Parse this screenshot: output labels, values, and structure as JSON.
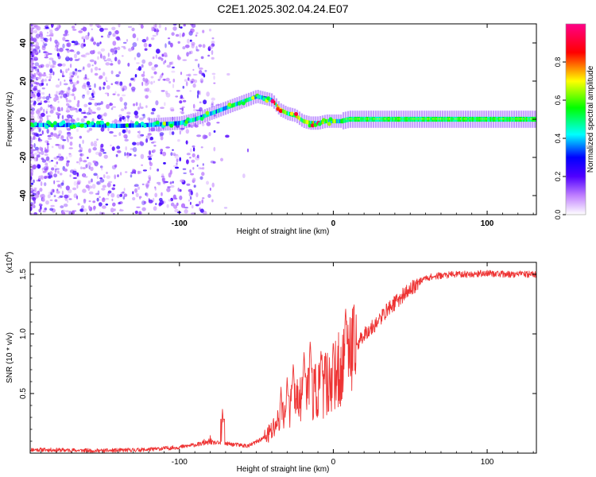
{
  "title": "C2E1.2025.302.04.24.E07",
  "colors": {
    "snr_line": "#ee3333",
    "axis": "#000000"
  },
  "chart_data": [
    {
      "type": "heatmap",
      "name": "spectrogram",
      "xlabel": "Height of straight line (km)",
      "ylabel": "Frequency (Hz)",
      "xlim": [
        -197,
        132
      ],
      "ylim": [
        -50,
        50
      ],
      "xticks": [
        -100,
        0,
        100
      ],
      "xtick_labels": [
        "-100",
        "0",
        "100"
      ],
      "yticks": [
        -40,
        -20,
        0,
        20,
        40
      ],
      "ytick_labels": [
        "-40",
        "-20",
        "0",
        "20",
        "40"
      ],
      "colorbar": {
        "label": "Normalized spectral amplitude",
        "range": [
          0,
          1
        ],
        "ticks": [
          0.0,
          0.2,
          0.4,
          0.6,
          0.8
        ],
        "tick_labels": [
          "0.0",
          "0.2",
          "0.4",
          "0.6",
          "0.8"
        ],
        "colormap": [
          "#ffffff",
          "#7f00ff",
          "#0000ff",
          "#00ffff",
          "#00ff00",
          "#ffff00",
          "#ff0000",
          "#ff00aa"
        ]
      },
      "ridge": {
        "x": [
          -197,
          -160,
          -140,
          -120,
          -100,
          -90,
          -80,
          -70,
          -60,
          -50,
          -40,
          -35,
          -30,
          -25,
          -20,
          -15,
          -10,
          -5,
          0,
          5,
          10,
          20,
          50,
          100,
          132
        ],
        "y": [
          -3,
          -3,
          -3.5,
          -3,
          -2,
          0,
          3,
          6,
          9,
          12,
          10,
          5,
          3,
          2,
          -1,
          -2,
          -2,
          -1,
          -1,
          -1,
          0,
          0,
          0,
          0,
          0
        ]
      }
    },
    {
      "type": "line",
      "name": "snr",
      "xlabel": "Height of straight line (km)",
      "ylabel": "SNR (10 * v/v)",
      "scale_label": "(x10",
      "scale_exp": "4",
      "scale_close": ")",
      "xlim": [
        -197,
        132
      ],
      "ylim": [
        0,
        1.6
      ],
      "xticks": [
        -100,
        0,
        100
      ],
      "xtick_labels": [
        "-100",
        "0",
        "100"
      ],
      "yticks": [
        0.5,
        1.0,
        1.5
      ],
      "ytick_labels": [
        "0.5",
        "1.0",
        "1.5"
      ],
      "trend": {
        "x": [
          -197,
          -150,
          -120,
          -100,
          -80,
          -70,
          -55,
          -45,
          -40,
          -35,
          -30,
          -25,
          -20,
          -15,
          -10,
          -5,
          0,
          5,
          10,
          15,
          20,
          25,
          30,
          35,
          40,
          45,
          50,
          55,
          60,
          70,
          80,
          90,
          100,
          110,
          120,
          132
        ],
        "y": [
          0.03,
          0.02,
          0.03,
          0.05,
          0.09,
          0.08,
          0.06,
          0.13,
          0.18,
          0.3,
          0.34,
          0.42,
          0.46,
          0.49,
          0.52,
          0.58,
          0.6,
          0.72,
          0.8,
          0.9,
          1.0,
          1.05,
          1.12,
          1.2,
          1.26,
          1.32,
          1.37,
          1.43,
          1.47,
          1.49,
          1.5,
          1.5,
          1.51,
          1.5,
          1.5,
          1.5
        ]
      },
      "spikes": [
        {
          "x": -72,
          "y": 0.38
        },
        {
          "x": -80,
          "y": 0.16
        },
        {
          "x": -84,
          "y": 0.14
        },
        {
          "x": -34,
          "y": 0.56
        },
        {
          "x": -30,
          "y": 0.64
        },
        {
          "x": -26,
          "y": 0.76
        },
        {
          "x": -19,
          "y": 0.85
        },
        {
          "x": -15,
          "y": 0.95
        },
        {
          "x": -8,
          "y": 0.86
        },
        {
          "x": 0,
          "y": 0.95
        },
        {
          "x": 8,
          "y": 1.22
        },
        {
          "x": 11,
          "y": 0.18
        }
      ]
    }
  ]
}
